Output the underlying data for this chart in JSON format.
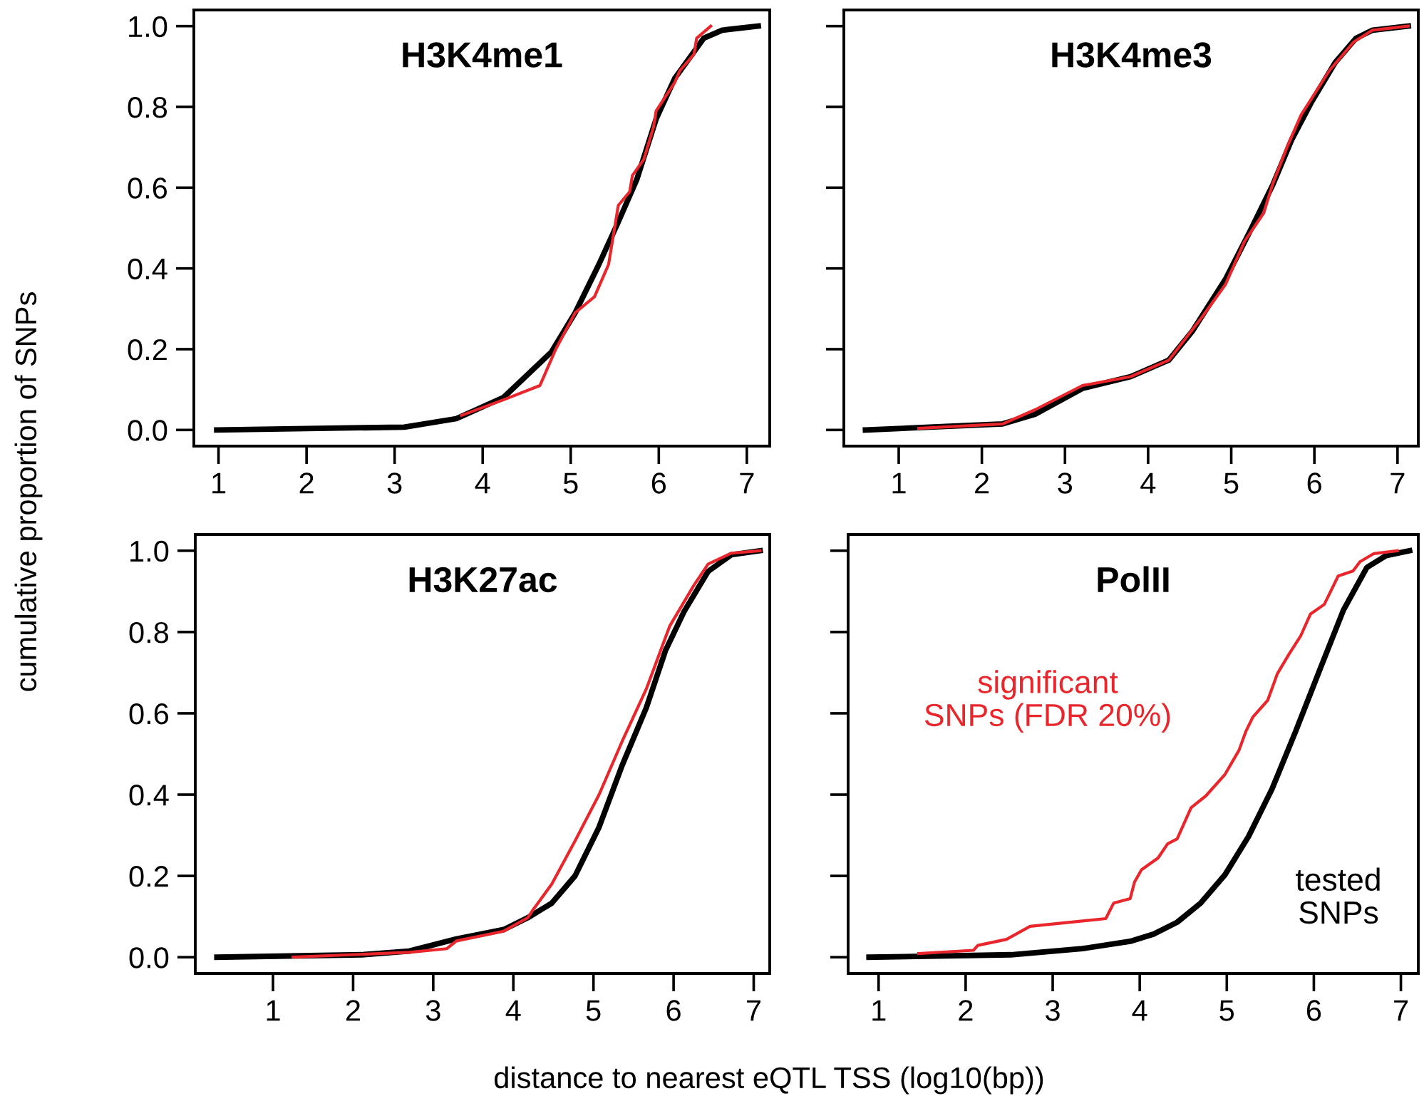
{
  "chart_data": [
    {
      "type": "line",
      "title": "H3K4me1",
      "ylabel": "cumulative proportion of SNPs",
      "xlim": [
        0.72,
        7.26
      ],
      "ylim": [
        -0.04,
        1.04
      ],
      "xticks": [
        1,
        2,
        3,
        4,
        5,
        6,
        7
      ],
      "yticks": [
        {
          "value": 0,
          "label": "0.0"
        },
        {
          "value": 0.2,
          "label": "0.2"
        },
        {
          "value": 0.4,
          "label": "0.4"
        },
        {
          "value": 0.6,
          "label": "0.6"
        },
        {
          "value": 0.8,
          "label": "0.8"
        },
        {
          "value": 1,
          "label": "1.0"
        }
      ],
      "series": [
        {
          "color": "#000000",
          "x": [
            0.98,
            3.11,
            3.7,
            4.24,
            4.78,
            5.05,
            5.32,
            5.54,
            5.75,
            5.97,
            6.18,
            6.51,
            6.72,
            7.13
          ],
          "values": [
            0,
            0.007,
            0.028,
            0.081,
            0.193,
            0.29,
            0.41,
            0.515,
            0.62,
            0.77,
            0.87,
            0.97,
            0.99,
            1.0
          ]
        },
        {
          "color": "#e8262b",
          "x": [
            3.76,
            4.24,
            4.65,
            4.83,
            5.05,
            5.27,
            5.43,
            5.54,
            5.67,
            5.7,
            5.83,
            5.94,
            5.97,
            6.18,
            6.24,
            6.4,
            6.43,
            6.59
          ],
          "values": [
            0.036,
            0.075,
            0.11,
            0.2,
            0.29,
            0.33,
            0.41,
            0.556,
            0.59,
            0.63,
            0.67,
            0.75,
            0.79,
            0.86,
            0.89,
            0.93,
            0.97,
            1.0
          ]
        }
      ]
    },
    {
      "type": "line",
      "title": "H3K4me3",
      "xlim": [
        0.34,
        7.25
      ],
      "ylim": [
        -0.04,
        1.04
      ],
      "xticks": [
        1,
        2,
        3,
        4,
        5,
        6,
        7
      ],
      "yticks": [
        {
          "value": 0,
          "label": null
        },
        {
          "value": 0.2,
          "label": null
        },
        {
          "value": 0.4,
          "label": null
        },
        {
          "value": 0.6,
          "label": null
        },
        {
          "value": 0.8,
          "label": null
        },
        {
          "value": 1,
          "label": null
        }
      ],
      "tick_labels": "x",
      "series": [
        {
          "color": "#000000",
          "x": [
            0.6,
            2.25,
            2.64,
            3.21,
            3.79,
            4.25,
            4.53,
            4.93,
            5.22,
            5.5,
            5.73,
            5.96,
            6.25,
            6.5,
            6.7,
            7.13
          ],
          "values": [
            0,
            0.015,
            0.039,
            0.103,
            0.132,
            0.173,
            0.244,
            0.373,
            0.49,
            0.607,
            0.72,
            0.81,
            0.91,
            0.97,
            0.99,
            1.0
          ]
        },
        {
          "color": "#e8262b",
          "x": [
            1.24,
            2.25,
            2.64,
            3.21,
            3.79,
            4.25,
            4.65,
            4.93,
            5.16,
            5.39,
            5.5,
            5.67,
            5.84,
            6.18,
            6.47,
            6.7,
            7.13
          ],
          "values": [
            0.004,
            0.015,
            0.05,
            0.11,
            0.132,
            0.173,
            0.28,
            0.36,
            0.467,
            0.537,
            0.61,
            0.7,
            0.78,
            0.89,
            0.96,
            0.99,
            1.0
          ]
        }
      ]
    },
    {
      "type": "line",
      "title": "H3K27ac",
      "xlim": [
        0.03,
        7.2
      ],
      "ylim": [
        -0.04,
        1.04
      ],
      "xticks": [
        1,
        2,
        3,
        4,
        5,
        6,
        7
      ],
      "yticks": [
        {
          "value": 0,
          "label": "0.0"
        },
        {
          "value": 0.2,
          "label": "0.2"
        },
        {
          "value": 0.4,
          "label": "0.4"
        },
        {
          "value": 0.6,
          "label": "0.6"
        },
        {
          "value": 0.8,
          "label": "0.8"
        },
        {
          "value": 1,
          "label": "1.0"
        }
      ],
      "series": [
        {
          "color": "#000000",
          "x": [
            0.3,
            2.11,
            2.7,
            3.29,
            3.88,
            4.18,
            4.48,
            4.77,
            5.07,
            5.36,
            5.66,
            5.9,
            6.13,
            6.43,
            6.72,
            7.08
          ],
          "values": [
            0,
            0.006,
            0.015,
            0.045,
            0.068,
            0.097,
            0.133,
            0.2,
            0.32,
            0.473,
            0.614,
            0.755,
            0.85,
            0.949,
            0.99,
            1.0
          ]
        },
        {
          "color": "#e8262b",
          "x": [
            1.25,
            2.7,
            3.17,
            3.29,
            3.88,
            4.18,
            4.24,
            4.48,
            4.77,
            5.07,
            5.36,
            5.66,
            5.95,
            6.25,
            6.43,
            6.72,
            7.08
          ],
          "values": [
            0,
            0.012,
            0.021,
            0.04,
            0.064,
            0.097,
            0.115,
            0.18,
            0.286,
            0.4,
            0.532,
            0.66,
            0.814,
            0.914,
            0.967,
            0.994,
            1.0
          ]
        }
      ]
    },
    {
      "type": "line",
      "title": "PolII",
      "xlabel": "distance to nearest eQTL TSS (log10(bp))",
      "xlim": [
        0.65,
        7.2
      ],
      "ylim": [
        -0.04,
        1.04
      ],
      "xticks": [
        1,
        2,
        3,
        4,
        5,
        6,
        7
      ],
      "yticks": [
        {
          "value": 0,
          "label": null
        },
        {
          "value": 0.2,
          "label": null
        },
        {
          "value": 0.4,
          "label": null
        },
        {
          "value": 0.6,
          "label": null
        },
        {
          "value": 0.8,
          "label": null
        },
        {
          "value": 1,
          "label": null
        }
      ],
      "tick_labels": "x",
      "annotations": [
        "tested\nSNPs",
        "significant\nSNPs (FDR 20%)"
      ],
      "series": [
        {
          "color": "#000000",
          "x": [
            0.89,
            2.52,
            3.34,
            3.89,
            4.16,
            4.43,
            4.7,
            4.98,
            5.25,
            5.52,
            5.79,
            6.07,
            6.34,
            6.61,
            6.83,
            7.1
          ],
          "values": [
            0,
            0.006,
            0.021,
            0.039,
            0.057,
            0.086,
            0.133,
            0.203,
            0.297,
            0.414,
            0.555,
            0.708,
            0.854,
            0.959,
            0.988,
            1.0
          ]
        },
        {
          "color": "#e8262b",
          "x": [
            1.46,
            2.09,
            2.14,
            2.47,
            2.74,
            3.61,
            3.7,
            3.89,
            3.94,
            4.02,
            4.21,
            4.32,
            4.43,
            4.59,
            4.76,
            4.98,
            5.14,
            5.22,
            5.3,
            5.47,
            5.58,
            5.71,
            5.85,
            5.96,
            6.12,
            6.2,
            6.28,
            6.45,
            6.53,
            6.69,
            6.96
          ],
          "values": [
            0.009,
            0.017,
            0.029,
            0.044,
            0.076,
            0.095,
            0.133,
            0.144,
            0.185,
            0.215,
            0.244,
            0.279,
            0.291,
            0.368,
            0.397,
            0.45,
            0.509,
            0.556,
            0.591,
            0.632,
            0.697,
            0.744,
            0.791,
            0.844,
            0.868,
            0.903,
            0.938,
            0.95,
            0.973,
            0.993,
            1.0
          ]
        }
      ]
    }
  ]
}
